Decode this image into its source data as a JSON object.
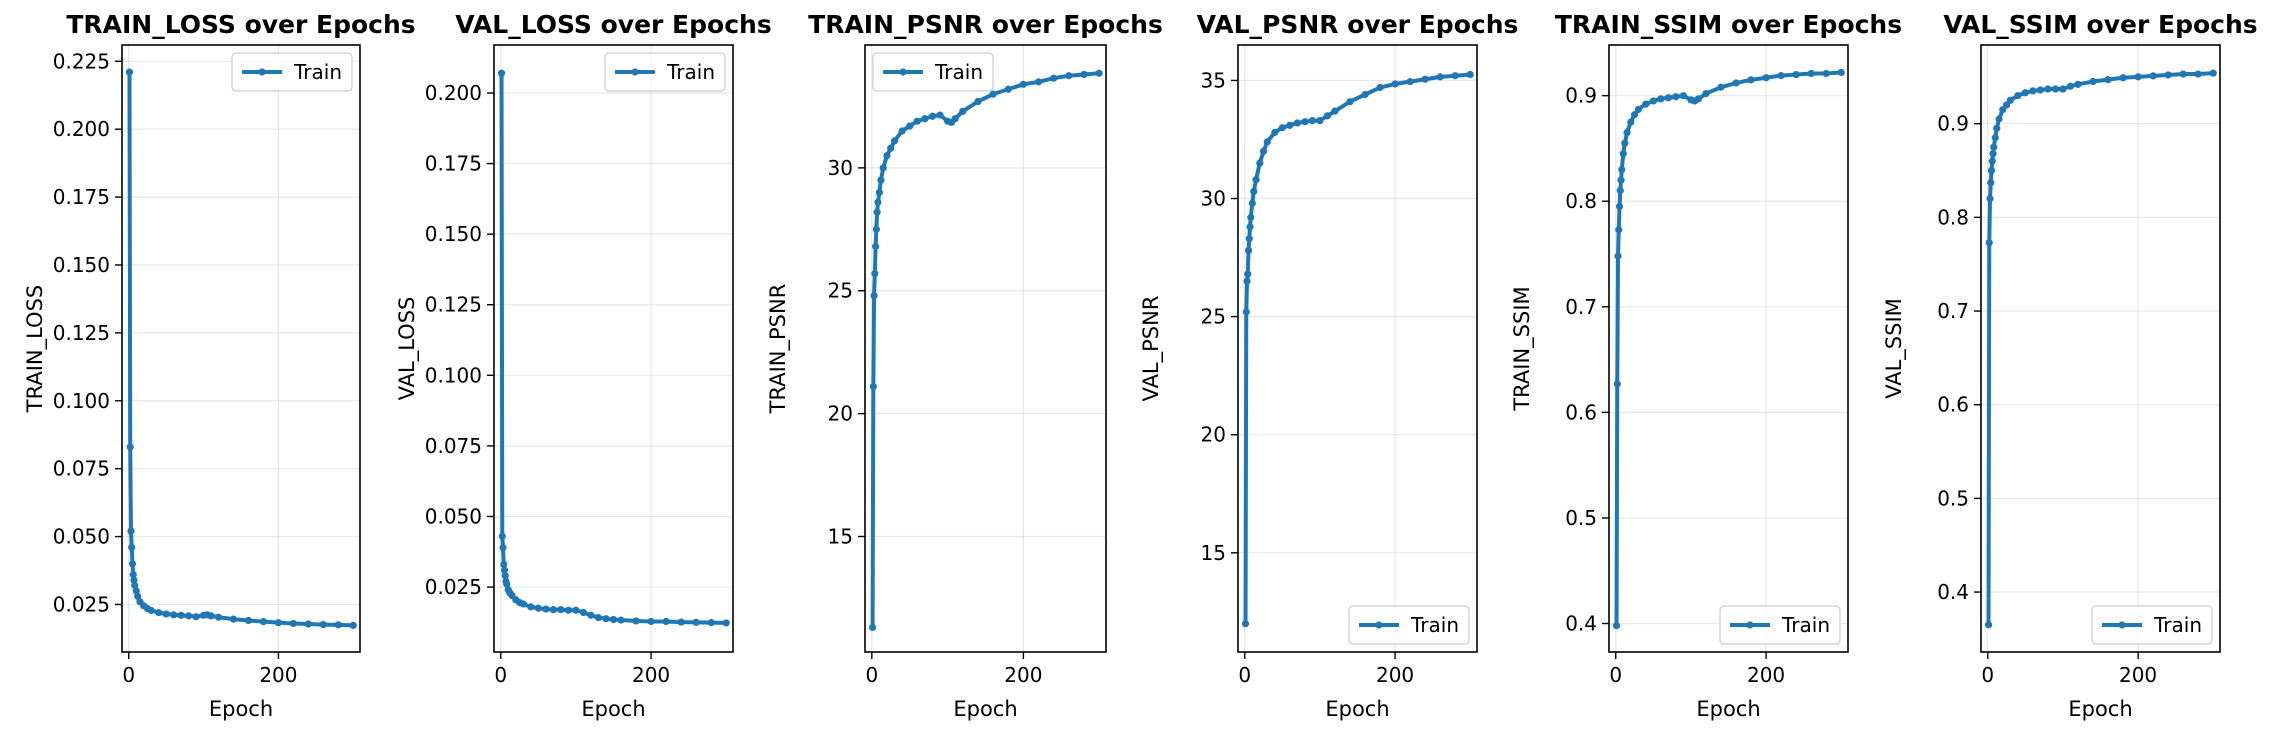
{
  "chart_data": [
    {
      "type": "line",
      "title": "TRAIN_LOSS over Epochs",
      "xlabel": "Epoch",
      "ylabel": "TRAIN_LOSS",
      "xlim": [
        -9,
        309
      ],
      "ylim": [
        0.0075,
        0.231
      ],
      "xticks": [
        0,
        200
      ],
      "yticks": [
        0.025,
        0.05,
        0.075,
        0.1,
        0.125,
        0.15,
        0.175,
        0.2,
        0.225
      ],
      "ytick_labels": [
        "0.025",
        "0.050",
        "0.075",
        "0.100",
        "0.125",
        "0.150",
        "0.175",
        "0.200",
        "0.225"
      ],
      "grid": true,
      "legend_position": "top-right",
      "color": "#1f77b4",
      "series": [
        {
          "name": "Train",
          "x": [
            1,
            2,
            3,
            4,
            5,
            6,
            7,
            8,
            10,
            12,
            15,
            20,
            25,
            30,
            40,
            50,
            60,
            70,
            80,
            90,
            100,
            105,
            110,
            120,
            140,
            160,
            180,
            200,
            220,
            240,
            260,
            280,
            300
          ],
          "y": [
            0.221,
            0.083,
            0.052,
            0.046,
            0.04,
            0.036,
            0.034,
            0.032,
            0.03,
            0.028,
            0.026,
            0.0245,
            0.0235,
            0.0228,
            0.022,
            0.0215,
            0.0212,
            0.021,
            0.0208,
            0.0205,
            0.021,
            0.0212,
            0.0208,
            0.0203,
            0.0196,
            0.0191,
            0.0187,
            0.0183,
            0.018,
            0.0178,
            0.0176,
            0.0175,
            0.0173
          ]
        }
      ]
    },
    {
      "type": "line",
      "title": "VAL_LOSS over Epochs",
      "xlabel": "Epoch",
      "ylabel": "VAL_LOSS",
      "xlim": [
        -9,
        309
      ],
      "ylim": [
        0.002,
        0.217
      ],
      "xticks": [
        0,
        200
      ],
      "yticks": [
        0.025,
        0.05,
        0.075,
        0.1,
        0.125,
        0.15,
        0.175,
        0.2
      ],
      "ytick_labels": [
        "0.025",
        "0.050",
        "0.075",
        "0.100",
        "0.125",
        "0.150",
        "0.175",
        "0.200"
      ],
      "grid": true,
      "legend_position": "top-right",
      "color": "#1f77b4",
      "series": [
        {
          "name": "Train",
          "x": [
            1,
            2,
            3,
            4,
            5,
            6,
            7,
            8,
            10,
            12,
            15,
            20,
            25,
            30,
            40,
            50,
            60,
            70,
            80,
            90,
            100,
            110,
            120,
            130,
            140,
            150,
            160,
            180,
            200,
            220,
            240,
            260,
            280,
            300
          ],
          "y": [
            0.207,
            0.043,
            0.039,
            0.033,
            0.031,
            0.029,
            0.027,
            0.026,
            0.024,
            0.023,
            0.022,
            0.0205,
            0.0195,
            0.019,
            0.018,
            0.0175,
            0.0172,
            0.017,
            0.017,
            0.0168,
            0.0168,
            0.016,
            0.015,
            0.0142,
            0.0138,
            0.0135,
            0.0133,
            0.013,
            0.0128,
            0.0128,
            0.0126,
            0.0125,
            0.0124,
            0.0123
          ]
        }
      ]
    },
    {
      "type": "line",
      "title": "TRAIN_PSNR over Epochs",
      "xlabel": "Epoch",
      "ylabel": "TRAIN_PSNR",
      "xlim": [
        -9,
        309
      ],
      "ylim": [
        10.3,
        35.0
      ],
      "xticks": [
        0,
        200
      ],
      "yticks": [
        15,
        20,
        25,
        30
      ],
      "ytick_labels": [
        "15",
        "20",
        "25",
        "30"
      ],
      "grid": true,
      "legend_position": "top-left",
      "color": "#1f77b4",
      "series": [
        {
          "name": "Train",
          "x": [
            1,
            2,
            3,
            4,
            5,
            6,
            7,
            8,
            10,
            12,
            15,
            20,
            25,
            30,
            40,
            50,
            60,
            70,
            80,
            90,
            100,
            105,
            110,
            120,
            140,
            160,
            180,
            200,
            220,
            240,
            260,
            280,
            300
          ],
          "y": [
            11.3,
            21.1,
            24.8,
            25.7,
            26.8,
            27.5,
            28.2,
            28.6,
            29.0,
            29.5,
            30.0,
            30.5,
            30.8,
            31.1,
            31.5,
            31.7,
            31.9,
            32.0,
            32.1,
            32.15,
            31.9,
            31.85,
            32.0,
            32.3,
            32.7,
            33.0,
            33.2,
            33.4,
            33.5,
            33.65,
            33.75,
            33.8,
            33.85
          ]
        }
      ]
    },
    {
      "type": "line",
      "title": "VAL_PSNR over Epochs",
      "xlabel": "Epoch",
      "ylabel": "VAL_PSNR",
      "xlim": [
        -9,
        309
      ],
      "ylim": [
        10.8,
        36.5
      ],
      "xticks": [
        0,
        200
      ],
      "yticks": [
        15,
        20,
        25,
        30,
        35
      ],
      "ytick_labels": [
        "15",
        "20",
        "25",
        "30",
        "35"
      ],
      "grid": true,
      "legend_position": "bottom-right",
      "color": "#1f77b4",
      "series": [
        {
          "name": "Train",
          "x": [
            1,
            2,
            3,
            4,
            5,
            6,
            7,
            8,
            10,
            12,
            15,
            20,
            25,
            30,
            40,
            50,
            60,
            70,
            80,
            90,
            100,
            110,
            120,
            140,
            160,
            180,
            200,
            220,
            240,
            260,
            280,
            300
          ],
          "y": [
            12.0,
            25.2,
            26.5,
            26.8,
            27.8,
            28.3,
            28.8,
            29.2,
            29.8,
            30.3,
            30.8,
            31.5,
            32.0,
            32.4,
            32.8,
            33.0,
            33.1,
            33.2,
            33.25,
            33.3,
            33.3,
            33.5,
            33.7,
            34.1,
            34.4,
            34.7,
            34.85,
            34.95,
            35.05,
            35.15,
            35.2,
            35.25
          ]
        }
      ]
    },
    {
      "type": "line",
      "title": "TRAIN_SSIM over Epochs",
      "xlabel": "Epoch",
      "ylabel": "TRAIN_SSIM",
      "xlim": [
        -9,
        309
      ],
      "ylim": [
        0.373,
        0.948
      ],
      "xticks": [
        0,
        200
      ],
      "yticks": [
        0.4,
        0.5,
        0.6,
        0.7,
        0.8,
        0.9
      ],
      "ytick_labels": [
        "0.4",
        "0.5",
        "0.6",
        "0.7",
        "0.8",
        "0.9"
      ],
      "grid": true,
      "legend_position": "bottom-right",
      "color": "#1f77b4",
      "series": [
        {
          "name": "Train",
          "x": [
            1,
            2,
            3,
            4,
            5,
            6,
            7,
            8,
            10,
            12,
            15,
            20,
            25,
            30,
            40,
            50,
            60,
            70,
            80,
            90,
            100,
            105,
            110,
            120,
            140,
            160,
            180,
            200,
            220,
            240,
            260,
            280,
            300
          ],
          "y": [
            0.398,
            0.627,
            0.748,
            0.773,
            0.795,
            0.81,
            0.82,
            0.83,
            0.845,
            0.855,
            0.865,
            0.875,
            0.882,
            0.887,
            0.892,
            0.895,
            0.897,
            0.898,
            0.899,
            0.9,
            0.896,
            0.895,
            0.897,
            0.902,
            0.908,
            0.912,
            0.915,
            0.917,
            0.919,
            0.92,
            0.921,
            0.921,
            0.922
          ]
        }
      ]
    },
    {
      "type": "line",
      "title": "VAL_SSIM over Epochs",
      "xlabel": "Epoch",
      "ylabel": "VAL_SSIM",
      "xlim": [
        -9,
        309
      ],
      "ylim": [
        0.336,
        0.984
      ],
      "xticks": [
        0,
        200
      ],
      "yticks": [
        0.4,
        0.5,
        0.6,
        0.7,
        0.8,
        0.9
      ],
      "ytick_labels": [
        "0.4",
        "0.5",
        "0.6",
        "0.7",
        "0.8",
        "0.9"
      ],
      "grid": true,
      "legend_position": "bottom-right",
      "color": "#1f77b4",
      "series": [
        {
          "name": "Train",
          "x": [
            1,
            2,
            3,
            4,
            5,
            6,
            7,
            8,
            10,
            12,
            15,
            20,
            25,
            30,
            40,
            50,
            60,
            70,
            80,
            90,
            100,
            110,
            120,
            140,
            160,
            180,
            200,
            220,
            240,
            260,
            280,
            300
          ],
          "y": [
            0.365,
            0.773,
            0.82,
            0.837,
            0.85,
            0.86,
            0.868,
            0.875,
            0.885,
            0.895,
            0.905,
            0.915,
            0.92,
            0.925,
            0.93,
            0.933,
            0.935,
            0.936,
            0.937,
            0.937,
            0.937,
            0.94,
            0.942,
            0.945,
            0.947,
            0.949,
            0.95,
            0.951,
            0.952,
            0.953,
            0.953,
            0.954
          ]
        }
      ]
    }
  ]
}
